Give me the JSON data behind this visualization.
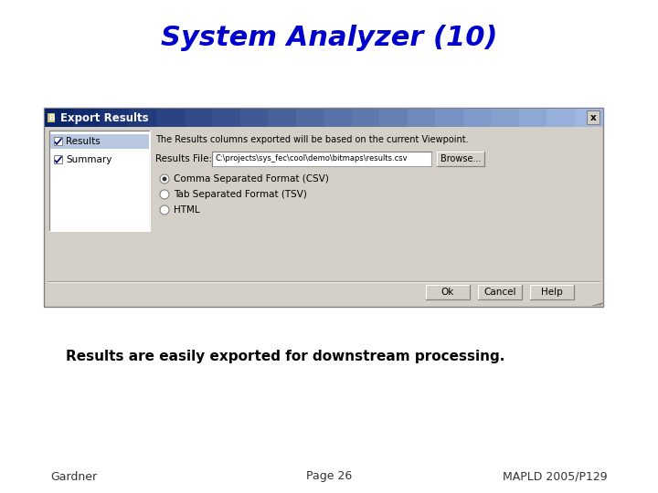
{
  "title": "System Analyzer (10)",
  "title_color": "#0000CC",
  "title_fontsize": 22,
  "body_text": "Results are easily exported for downstream processing.",
  "body_fontsize": 11,
  "footer_left": "Gardner",
  "footer_center": "Page 26",
  "footer_right": "MAPLD 2005/P129",
  "footer_fontsize": 9,
  "bg_color": "#ffffff",
  "dialog_title": "Export Results",
  "dialog_info": "The Results columns exported will be based on the current Viewpoint.",
  "dialog_file_label": "Results File:",
  "dialog_file_path": "C:\\projects\\sys_fec\\cool\\demo\\bitmaps\\results.csv",
  "dialog_browse": "Browse...",
  "dialog_options": [
    "Comma Separated Format (CSV)",
    "Tab Separated Format (TSV)",
    "HTML"
  ],
  "dialog_buttons": [
    "Ok",
    "Cancel",
    "Help"
  ],
  "dialog_checkboxes": [
    "Results",
    "Summary"
  ],
  "dialog_bg": "#d4d0c8",
  "dialog_titlebar_left": "#0a246a",
  "dialog_titlebar_right": "#a6c0e8",
  "listbox_bg": "#ffffff",
  "listbox_selected_bg": "#b8c8e0",
  "input_bg": "#ffffff",
  "button_bg": "#d4d0c8",
  "dialog_border_dark": "#404040",
  "dialog_border_light": "#ffffff"
}
